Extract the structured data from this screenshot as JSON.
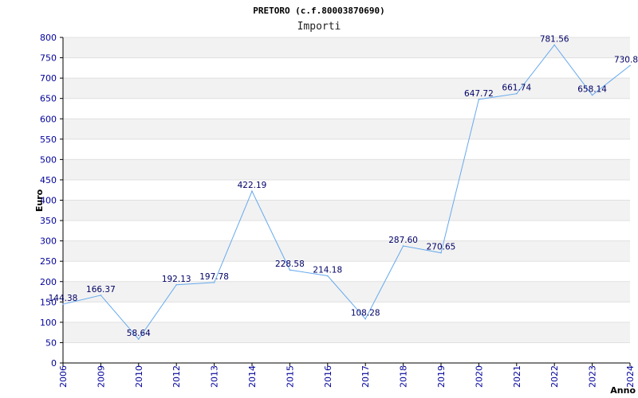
{
  "chart_data": {
    "type": "line",
    "title": "PRETORO (c.f.80003870690)",
    "subtitle": "Importi",
    "xlabel": "Anno",
    "ylabel": "Euro",
    "ylim": [
      0,
      800
    ],
    "ytick_step": 50,
    "grid": true,
    "categories": [
      "2006",
      "2009",
      "2010",
      "2012",
      "2013",
      "2014",
      "2015",
      "2016",
      "2017",
      "2018",
      "2019",
      "2020",
      "2021",
      "2022",
      "2023",
      "2024"
    ],
    "series": [
      {
        "values": [
          144.38,
          166.37,
          58.64,
          192.13,
          197.78,
          422.19,
          228.58,
          214.18,
          108.28,
          287.6,
          270.65,
          647.72,
          661.74,
          781.56,
          658.14,
          730.8
        ],
        "labels": [
          "144.38",
          "166.37",
          "58.64",
          "192.13",
          "197.78",
          "422.19",
          "228.58",
          "214.18",
          "108.28",
          "287.60",
          "270.65",
          "647.72",
          "661.74",
          "781.56",
          "658.14",
          "730.8"
        ],
        "color": "#66aaee"
      }
    ],
    "band_colors": [
      "#f2f2f2",
      "#ffffff"
    ],
    "tick_color": "#000099",
    "label_color": "#000066"
  }
}
